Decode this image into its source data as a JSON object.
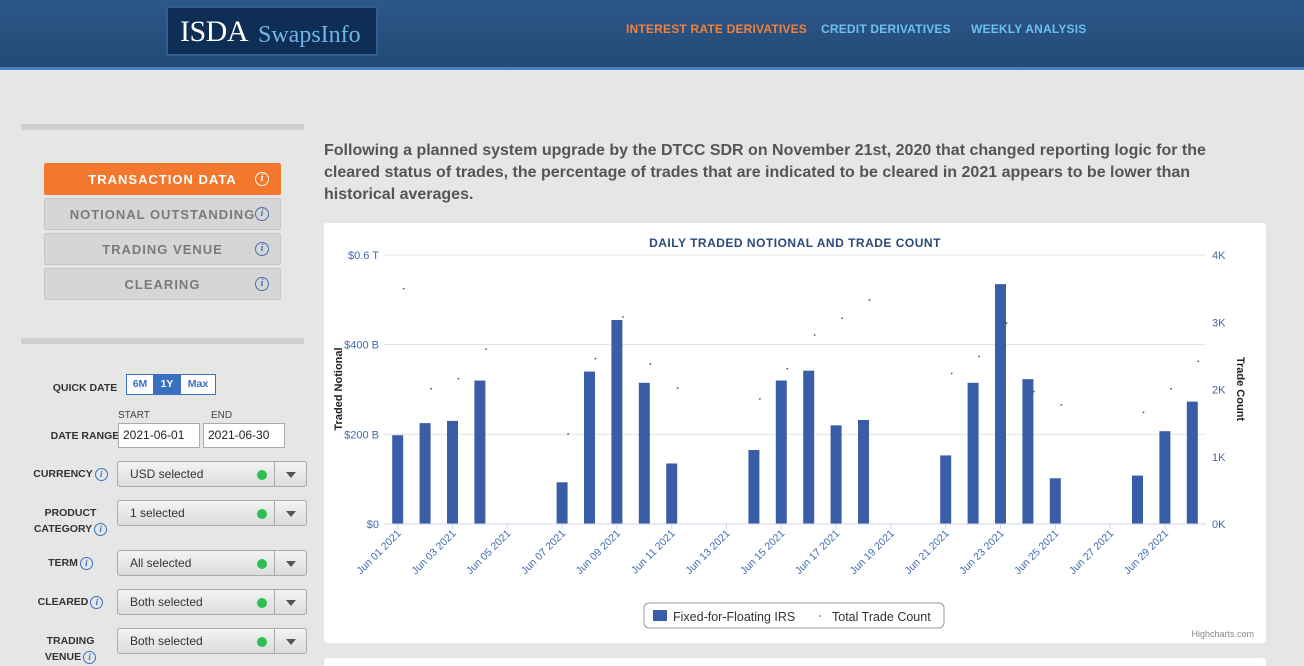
{
  "header": {
    "logo_primary": "ISDA",
    "logo_secondary": "SwapsInfo",
    "nav": [
      "INTEREST RATE DERIVATIVES",
      "CREDIT DERIVATIVES",
      "WEEKLY ANALYSIS"
    ],
    "active_nav": "INTEREST RATE DERIVATIVES"
  },
  "sidebar": {
    "buttons": [
      "TRANSACTION DATA",
      "NOTIONAL OUTSTANDING",
      "TRADING VENUE",
      "CLEARING"
    ],
    "active_button": "TRANSACTION DATA",
    "info_glyph": "i",
    "quick_date_label": "QUICK DATE",
    "quick_date_options": [
      "6M",
      "1Y",
      "Max"
    ],
    "quick_date_selected": "1Y",
    "start_label": "START",
    "end_label": "END",
    "date_range_label": "DATE RANGE",
    "start_date": "2021-06-01",
    "end_date": "2021-06-30",
    "filters": {
      "currency": {
        "label": "CURRENCY",
        "value": "USD selected"
      },
      "product_category": {
        "label_line1": "PRODUCT",
        "label_line2": "CATEGORY",
        "value": "1 selected"
      },
      "term": {
        "label": "TERM",
        "value": "All selected"
      },
      "cleared": {
        "label": "CLEARED",
        "value": "Both selected"
      },
      "trading_venue": {
        "label_line1": "TRADING",
        "label_line2": "VENUE",
        "value": "Both selected"
      }
    }
  },
  "main": {
    "intro": "Following a planned system upgrade by the DTCC SDR on November 21st, 2020 that changed reporting logic for the cleared status of trades, the percentage of trades that are indicated to be cleared in 2021 appears to be lower than historical averages."
  },
  "colors": {
    "accent_orange": "#f4772e",
    "nav_blue": "#6cc0f0",
    "bar_blue": "#3a5da8",
    "axis_blue": "#3f6bb0",
    "status_green": "#2dbf52"
  },
  "chart_data": {
    "type": "bar",
    "title": "DAILY TRADED NOTIONAL AND TRADE COUNT",
    "ylabel": "Traded Notional",
    "y2label": "Trade Count",
    "ylim": [
      0,
      600
    ],
    "y2lim": [
      0,
      4000
    ],
    "y_ticks": [
      "$0",
      "$200 B",
      "$400 B",
      "$0.6 T"
    ],
    "y2_ticks": [
      "0K",
      "1K",
      "2K",
      "3K",
      "4K"
    ],
    "x_tick_labels": [
      "Jun 01 2021",
      "Jun 03 2021",
      "Jun 05 2021",
      "Jun 07 2021",
      "Jun 09 2021",
      "Jun 11 2021",
      "Jun 13 2021",
      "Jun 15 2021",
      "Jun 17 2021",
      "Jun 19 2021",
      "Jun 21 2021",
      "Jun 23 2021",
      "Jun 25 2021",
      "Jun 27 2021",
      "Jun 29 2021"
    ],
    "x": [
      "Jun 01 2021",
      "Jun 02 2021",
      "Jun 03 2021",
      "Jun 04 2021",
      "Jun 05 2021",
      "Jun 06 2021",
      "Jun 07 2021",
      "Jun 08 2021",
      "Jun 09 2021",
      "Jun 10 2021",
      "Jun 11 2021",
      "Jun 12 2021",
      "Jun 13 2021",
      "Jun 14 2021",
      "Jun 15 2021",
      "Jun 16 2021",
      "Jun 17 2021",
      "Jun 18 2021",
      "Jun 19 2021",
      "Jun 20 2021",
      "Jun 21 2021",
      "Jun 22 2021",
      "Jun 23 2021",
      "Jun 24 2021",
      "Jun 25 2021",
      "Jun 26 2021",
      "Jun 27 2021",
      "Jun 28 2021",
      "Jun 29 2021",
      "Jun 30 2021"
    ],
    "series": [
      {
        "name": "Fixed-for-Floating IRS",
        "type": "bar",
        "values": [
          198,
          225,
          230,
          320,
          null,
          null,
          93,
          340,
          455,
          315,
          135,
          null,
          null,
          165,
          320,
          342,
          220,
          232,
          null,
          null,
          153,
          315,
          535,
          323,
          102,
          null,
          null,
          108,
          207,
          273
        ]
      },
      {
        "name": "Total Trade Count",
        "type": "scatter",
        "values": [
          3500,
          2010,
          2160,
          2600,
          null,
          null,
          1340,
          2460,
          3080,
          2380,
          2020,
          null,
          null,
          1860,
          2310,
          2810,
          3060,
          3330,
          null,
          null,
          2240,
          2490,
          2990,
          1970,
          1770,
          null,
          null,
          1660,
          2010,
          2420
        ]
      }
    ],
    "legend": "bottom-center",
    "credit": "Highcharts.com",
    "grid": true
  }
}
